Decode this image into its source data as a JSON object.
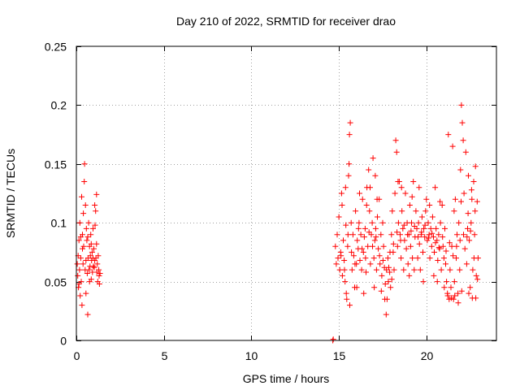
{
  "chart_data": {
    "type": "scatter",
    "title": "Day 210 of 2022, SRMTID for receiver drao",
    "xlabel": "GPS time / hours",
    "ylabel": "SRMTID / TECUs",
    "xlim": [
      0,
      24
    ],
    "ylim": [
      0,
      0.25
    ],
    "xticks": [
      0,
      5,
      10,
      15,
      20
    ],
    "xtick_labels": [
      "0",
      "5",
      "10",
      "15",
      "20"
    ],
    "yticks": [
      0,
      0.05,
      0.1,
      0.15,
      0.2,
      0.25
    ],
    "ytick_labels": [
      "0",
      "0.05",
      "0.1",
      "0.15",
      "0.2",
      "0.25"
    ],
    "grid": true,
    "marker": "plus",
    "color": "#ff0000",
    "series": [
      {
        "name": "SRMTID",
        "points": [
          [
            0.05,
            0.065
          ],
          [
            0.08,
            0.055
          ],
          [
            0.1,
            0.072
          ],
          [
            0.12,
            0.045
          ],
          [
            0.15,
            0.085
          ],
          [
            0.18,
            0.06
          ],
          [
            0.2,
            0.1
          ],
          [
            0.22,
            0.038
          ],
          [
            0.25,
            0.07
          ],
          [
            0.28,
            0.05
          ],
          [
            0.3,
            0.122
          ],
          [
            0.32,
            0.03
          ],
          [
            0.35,
            0.09
          ],
          [
            0.38,
            0.065
          ],
          [
            0.4,
            0.108
          ],
          [
            0.42,
            0.08
          ],
          [
            0.45,
            0.135
          ],
          [
            0.47,
            0.15
          ],
          [
            0.5,
            0.06
          ],
          [
            0.52,
            0.115
          ],
          [
            0.55,
            0.04
          ],
          [
            0.57,
            0.095
          ],
          [
            0.6,
            0.085
          ],
          [
            0.62,
            0.057
          ],
          [
            0.65,
            0.022
          ],
          [
            0.67,
            0.07
          ],
          [
            0.7,
            0.1
          ],
          [
            0.72,
            0.06
          ],
          [
            0.75,
            0.08
          ],
          [
            0.78,
            0.063
          ],
          [
            0.8,
            0.072
          ],
          [
            0.82,
            0.09
          ],
          [
            0.85,
            0.052
          ],
          [
            0.87,
            0.068
          ],
          [
            0.9,
            0.075
          ],
          [
            0.92,
            0.058
          ],
          [
            0.95,
            0.095
          ],
          [
            0.97,
            0.063
          ],
          [
            1.0,
            0.078
          ],
          [
            1.02,
            0.062
          ],
          [
            1.05,
            0.115
          ],
          [
            1.07,
            0.098
          ],
          [
            1.1,
            0.11
          ],
          [
            1.12,
            0.07
          ],
          [
            1.15,
            0.124
          ],
          [
            1.17,
            0.058
          ],
          [
            1.2,
            0.065
          ],
          [
            1.22,
            0.05
          ],
          [
            1.25,
            0.072
          ],
          [
            1.28,
            0.06
          ],
          [
            1.3,
            0.055
          ],
          [
            1.32,
            0.048
          ],
          [
            1.35,
            0.057
          ],
          [
            0.15,
            0.048
          ],
          [
            0.25,
            0.088
          ],
          [
            0.35,
            0.078
          ],
          [
            0.55,
            0.068
          ],
          [
            0.65,
            0.088
          ],
          [
            0.75,
            0.05
          ],
          [
            0.85,
            0.082
          ],
          [
            0.95,
            0.07
          ],
          [
            1.05,
            0.068
          ],
          [
            1.15,
            0.082
          ],
          [
            14.65,
            0.0
          ],
          [
            14.68,
            0.001
          ],
          [
            14.8,
            0.08
          ],
          [
            14.85,
            0.065
          ],
          [
            14.9,
            0.09
          ],
          [
            14.95,
            0.07
          ],
          [
            15.0,
            0.105
          ],
          [
            15.05,
            0.06
          ],
          [
            15.1,
            0.075
          ],
          [
            15.15,
            0.125
          ],
          [
            15.2,
            0.055
          ],
          [
            15.25,
            0.085
          ],
          [
            15.3,
            0.068
          ],
          [
            15.35,
            0.05
          ],
          [
            15.4,
            0.098
          ],
          [
            15.45,
            0.035
          ],
          [
            15.5,
            0.08
          ],
          [
            15.55,
            0.14
          ],
          [
            15.6,
            0.175
          ],
          [
            15.65,
            0.185
          ],
          [
            15.7,
            0.1
          ],
          [
            15.75,
            0.06
          ],
          [
            15.8,
            0.09
          ],
          [
            15.85,
            0.072
          ],
          [
            15.9,
            0.045
          ],
          [
            15.95,
            0.11
          ],
          [
            16.0,
            0.065
          ],
          [
            16.05,
            0.085
          ],
          [
            16.1,
            0.078
          ],
          [
            16.15,
            0.1
          ],
          [
            16.2,
            0.068
          ],
          [
            16.25,
            0.09
          ],
          [
            16.3,
            0.06
          ],
          [
            16.35,
            0.12
          ],
          [
            16.4,
            0.075
          ],
          [
            16.45,
            0.088
          ],
          [
            16.5,
            0.095
          ],
          [
            16.55,
            0.058
          ],
          [
            16.6,
            0.13
          ],
          [
            16.65,
            0.08
          ],
          [
            16.7,
            0.145
          ],
          [
            16.75,
            0.11
          ],
          [
            16.8,
            0.065
          ],
          [
            16.85,
            0.09
          ],
          [
            16.9,
            0.1
          ],
          [
            16.95,
            0.155
          ],
          [
            17.0,
            0.07
          ],
          [
            17.05,
            0.085
          ],
          [
            17.1,
            0.095
          ],
          [
            17.15,
            0.06
          ],
          [
            17.2,
            0.105
          ],
          [
            17.25,
            0.078
          ],
          [
            17.3,
            0.12
          ],
          [
            17.35,
            0.065
          ],
          [
            17.4,
            0.09
          ],
          [
            17.45,
            0.055
          ],
          [
            17.5,
            0.1
          ],
          [
            17.55,
            0.08
          ],
          [
            17.6,
            0.062
          ],
          [
            17.65,
            0.048
          ],
          [
            17.7,
            0.022
          ],
          [
            17.75,
            0.035
          ],
          [
            17.8,
            0.07
          ],
          [
            17.85,
            0.062
          ],
          [
            17.9,
            0.058
          ],
          [
            17.95,
            0.045
          ],
          [
            18.0,
            0.09
          ],
          [
            18.05,
            0.11
          ],
          [
            18.1,
            0.075
          ],
          [
            18.15,
            0.06
          ],
          [
            18.2,
            0.125
          ],
          [
            18.25,
            0.17
          ],
          [
            18.3,
            0.16
          ],
          [
            18.35,
            0.08
          ],
          [
            18.4,
            0.1
          ],
          [
            18.45,
            0.135
          ],
          [
            18.5,
            0.09
          ],
          [
            18.55,
            0.07
          ],
          [
            18.6,
            0.11
          ],
          [
            18.65,
            0.095
          ],
          [
            18.7,
            0.06
          ],
          [
            18.75,
            0.085
          ],
          [
            18.8,
            0.125
          ],
          [
            18.85,
            0.078
          ],
          [
            18.9,
            0.1
          ],
          [
            18.95,
            0.065
          ],
          [
            19.0,
            0.09
          ],
          [
            19.05,
            0.115
          ],
          [
            19.1,
            0.08
          ],
          [
            19.15,
            0.1
          ],
          [
            19.2,
            0.07
          ],
          [
            19.25,
            0.135
          ],
          [
            19.3,
            0.06
          ],
          [
            19.35,
            0.088
          ],
          [
            19.4,
            0.11
          ],
          [
            19.45,
            0.095
          ],
          [
            19.5,
            0.07
          ],
          [
            19.55,
            0.1
          ],
          [
            19.6,
            0.082
          ],
          [
            19.65,
            0.06
          ],
          [
            19.7,
            0.09
          ],
          [
            19.75,
            0.105
          ],
          [
            19.8,
            0.075
          ],
          [
            19.85,
            0.095
          ],
          [
            19.9,
            0.088
          ],
          [
            19.95,
            0.11
          ],
          [
            20.0,
            0.12
          ],
          [
            20.05,
            0.085
          ],
          [
            20.1,
            0.1
          ],
          [
            20.15,
            0.09
          ],
          [
            20.2,
            0.07
          ],
          [
            20.25,
            0.095
          ],
          [
            20.3,
            0.08
          ],
          [
            20.35,
            0.105
          ],
          [
            20.4,
            0.088
          ],
          [
            20.45,
            0.075
          ],
          [
            20.5,
            0.13
          ],
          [
            20.55,
            0.095
          ],
          [
            20.6,
            0.085
          ],
          [
            20.65,
            0.068
          ],
          [
            20.7,
            0.09
          ],
          [
            20.75,
            0.078
          ],
          [
            20.8,
            0.1
          ],
          [
            20.85,
            0.06
          ],
          [
            20.9,
            0.115
          ],
          [
            20.95,
            0.08
          ],
          [
            21.0,
            0.07
          ],
          [
            21.05,
            0.095
          ],
          [
            21.1,
            0.065
          ],
          [
            21.15,
            0.05
          ],
          [
            21.2,
            0.04
          ],
          [
            21.25,
            0.175
          ],
          [
            21.3,
            0.035
          ],
          [
            21.35,
            0.06
          ],
          [
            21.4,
            0.045
          ],
          [
            21.45,
            0.08
          ],
          [
            21.5,
            0.165
          ],
          [
            21.55,
            0.035
          ],
          [
            21.6,
            0.05
          ],
          [
            21.65,
            0.12
          ],
          [
            21.7,
            0.07
          ],
          [
            21.75,
            0.09
          ],
          [
            21.8,
            0.04
          ],
          [
            21.85,
            0.1
          ],
          [
            21.9,
            0.06
          ],
          [
            21.95,
            0.145
          ],
          [
            22.0,
            0.2
          ],
          [
            22.05,
            0.185
          ],
          [
            22.1,
            0.17
          ],
          [
            22.15,
            0.125
          ],
          [
            22.2,
            0.078
          ],
          [
            22.25,
            0.16
          ],
          [
            22.3,
            0.065
          ],
          [
            22.35,
            0.095
          ],
          [
            22.4,
            0.14
          ],
          [
            22.45,
            0.085
          ],
          [
            22.5,
            0.045
          ],
          [
            22.55,
            0.1
          ],
          [
            22.6,
            0.12
          ],
          [
            22.65,
            0.06
          ],
          [
            22.7,
            0.135
          ],
          [
            22.75,
            0.09
          ],
          [
            22.8,
            0.148
          ],
          [
            22.85,
            0.055
          ],
          [
            22.9,
            0.118
          ],
          [
            22.95,
            0.07
          ],
          [
            15.12,
            0.072
          ],
          [
            15.32,
            0.06
          ],
          [
            15.52,
            0.09
          ],
          [
            15.72,
            0.075
          ],
          [
            15.92,
            0.065
          ],
          [
            16.12,
            0.095
          ],
          [
            16.32,
            0.078
          ],
          [
            16.52,
            0.07
          ],
          [
            16.72,
            0.092
          ],
          [
            16.92,
            0.08
          ],
          [
            17.12,
            0.088
          ],
          [
            17.32,
            0.072
          ],
          [
            17.52,
            0.068
          ],
          [
            17.72,
            0.06
          ],
          [
            17.92,
            0.075
          ],
          [
            18.12,
            0.082
          ],
          [
            18.32,
            0.092
          ],
          [
            18.52,
            0.085
          ],
          [
            18.72,
            0.098
          ],
          [
            18.92,
            0.09
          ],
          [
            19.12,
            0.093
          ],
          [
            19.32,
            0.097
          ],
          [
            19.52,
            0.088
          ],
          [
            19.72,
            0.092
          ],
          [
            19.92,
            0.098
          ],
          [
            20.12,
            0.087
          ],
          [
            20.32,
            0.091
          ],
          [
            20.52,
            0.083
          ],
          [
            20.72,
            0.079
          ],
          [
            20.92,
            0.088
          ],
          [
            21.12,
            0.076
          ],
          [
            21.32,
            0.083
          ],
          [
            21.52,
            0.072
          ],
          [
            21.72,
            0.08
          ],
          [
            21.92,
            0.085
          ],
          [
            22.12,
            0.09
          ],
          [
            22.32,
            0.088
          ],
          [
            22.52,
            0.093
          ],
          [
            22.72,
            0.07
          ],
          [
            22.92,
            0.052
          ],
          [
            15.18,
            0.115
          ],
          [
            15.38,
            0.13
          ],
          [
            15.58,
            0.15
          ],
          [
            16.18,
            0.125
          ],
          [
            16.58,
            0.115
          ],
          [
            16.78,
            0.13
          ],
          [
            17.08,
            0.14
          ],
          [
            17.18,
            0.12
          ],
          [
            18.38,
            0.135
          ],
          [
            18.58,
            0.13
          ],
          [
            19.18,
            0.122
          ],
          [
            19.58,
            0.13
          ],
          [
            20.18,
            0.115
          ],
          [
            20.78,
            0.118
          ],
          [
            21.58,
            0.11
          ],
          [
            21.98,
            0.118
          ],
          [
            22.38,
            0.108
          ],
          [
            22.58,
            0.128
          ],
          [
            22.78,
            0.11
          ],
          [
            15.42,
            0.04
          ],
          [
            15.62,
            0.03
          ],
          [
            16.02,
            0.045
          ],
          [
            16.42,
            0.04
          ],
          [
            17.02,
            0.045
          ],
          [
            17.42,
            0.042
          ],
          [
            17.62,
            0.035
          ],
          [
            17.82,
            0.05
          ],
          [
            18.02,
            0.052
          ],
          [
            19.02,
            0.055
          ],
          [
            19.82,
            0.05
          ],
          [
            20.42,
            0.055
          ],
          [
            20.62,
            0.05
          ],
          [
            21.02,
            0.045
          ],
          [
            21.22,
            0.038
          ],
          [
            21.42,
            0.036
          ],
          [
            21.62,
            0.038
          ],
          [
            21.82,
            0.032
          ],
          [
            22.02,
            0.042
          ],
          [
            22.42,
            0.04
          ],
          [
            22.62,
            0.036
          ],
          [
            22.82,
            0.036
          ]
        ]
      }
    ]
  }
}
